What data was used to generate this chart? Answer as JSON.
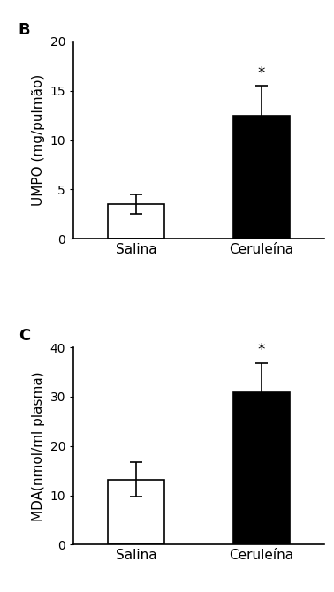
{
  "panel_B": {
    "label": "B",
    "categories": [
      "Salina",
      "Ceruleína"
    ],
    "values": [
      3.5,
      12.5
    ],
    "errors": [
      1.0,
      3.0
    ],
    "bar_colors": [
      "#ffffff",
      "#000000"
    ],
    "bar_edgecolors": [
      "#000000",
      "#000000"
    ],
    "ylabel": "UMPO (mg/pulmão)",
    "ylim": [
      0,
      20
    ],
    "yticks": [
      0,
      5,
      10,
      15,
      20
    ],
    "significance": [
      false,
      true
    ]
  },
  "panel_C": {
    "label": "C",
    "categories": [
      "Salina",
      "Ceruleína"
    ],
    "values": [
      13.2,
      30.8
    ],
    "errors": [
      3.5,
      6.0
    ],
    "bar_colors": [
      "#ffffff",
      "#000000"
    ],
    "bar_edgecolors": [
      "#000000",
      "#000000"
    ],
    "ylabel": "MDA(nmol/ml plasma)",
    "ylim": [
      0,
      40
    ],
    "yticks": [
      0,
      10,
      20,
      30,
      40
    ],
    "significance": [
      false,
      true
    ]
  },
  "background_color": "#ffffff",
  "bar_width": 0.45,
  "label_fontsize": 11,
  "tick_fontsize": 10,
  "category_fontsize": 11,
  "panel_label_fontsize": 13
}
